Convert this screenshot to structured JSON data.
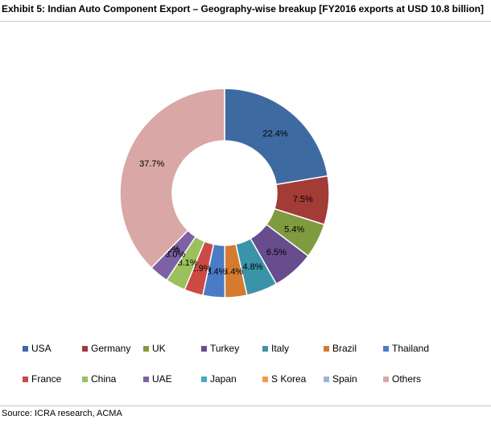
{
  "title": "Exhibit 5: Indian Auto Component Export – Geography-wise breakup [FY2016 exports at USD 10.8 billion]",
  "source": "Source: ICRA research, ACMA",
  "chart_data": {
    "type": "pie",
    "variant": "donut",
    "categories": [
      "USA",
      "Germany",
      "UK",
      "Turkey",
      "Italy",
      "Brazil",
      "Thailand",
      "France",
      "China",
      "UAE",
      "Japan",
      "S Korea",
      "Spain",
      "Others"
    ],
    "values": [
      22.4,
      7.5,
      5.4,
      6.5,
      4.8,
      3.4,
      3.4,
      2.9,
      3.1,
      3.0,
      0.0,
      0.0,
      0.0,
      37.7
    ],
    "data_labels": [
      "22.4%",
      "7.5%",
      "5.4%",
      "6.5%",
      "4.8%",
      "3.4%",
      "3.4%",
      "2.9%",
      "3.1%",
      "3.0%",
      "0.0%",
      "0.0%",
      "0.0%",
      "37.7%"
    ],
    "colors": [
      "#3e6aa2",
      "#a33b37",
      "#7f9b3f",
      "#674d8e",
      "#3b93a9",
      "#d47b30",
      "#4a7bc4",
      "#cc4a44",
      "#9bc05c",
      "#7d61a6",
      "#45abc6",
      "#f09b4c",
      "#9cb5d9",
      "#d8a7a6"
    ],
    "legend_position": "bottom"
  }
}
